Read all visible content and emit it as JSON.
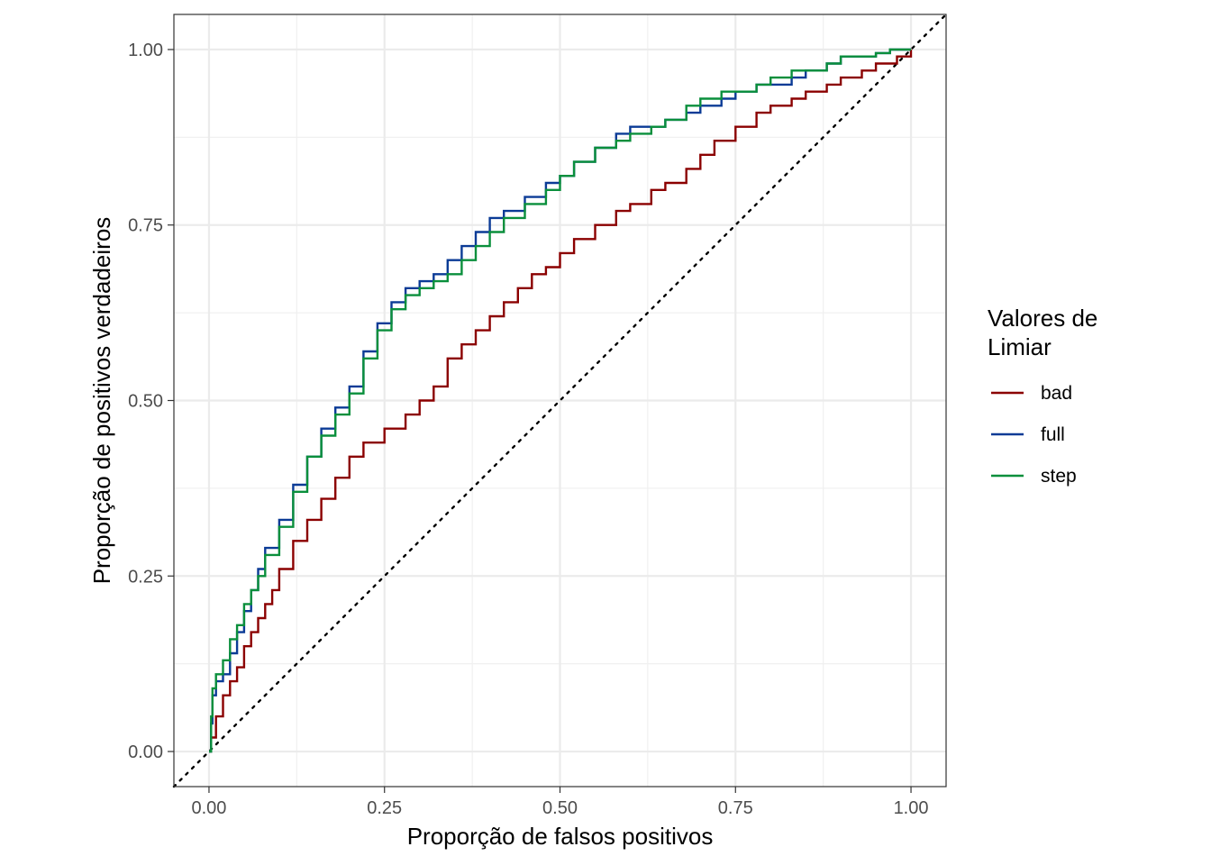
{
  "chart_data": {
    "type": "line",
    "xlabel": "Proporção de falsos positivos",
    "ylabel": "Proporção de positivos verdadeiros",
    "xlim": [
      -0.05,
      1.05
    ],
    "ylim": [
      -0.05,
      1.05
    ],
    "x_ticks": [
      "0.00",
      "0.25",
      "0.50",
      "0.75",
      "1.00"
    ],
    "y_ticks": [
      "0.00",
      "0.25",
      "0.50",
      "0.75",
      "1.00"
    ],
    "grid": true,
    "legend": {
      "title_lines": [
        "Valores de",
        "Limiar"
      ],
      "position": "right"
    },
    "reference_line": {
      "style": "dotted",
      "color": "#000000",
      "points": [
        [
          -0.05,
          -0.05
        ],
        [
          1.05,
          1.05
        ]
      ]
    },
    "series": [
      {
        "name": "bad",
        "color": "#8b0000",
        "points": [
          [
            0,
            0
          ],
          [
            0.003,
            0.02
          ],
          [
            0.01,
            0.05
          ],
          [
            0.02,
            0.08
          ],
          [
            0.03,
            0.1
          ],
          [
            0.04,
            0.12
          ],
          [
            0.05,
            0.15
          ],
          [
            0.06,
            0.17
          ],
          [
            0.07,
            0.19
          ],
          [
            0.08,
            0.21
          ],
          [
            0.09,
            0.23
          ],
          [
            0.1,
            0.26
          ],
          [
            0.12,
            0.3
          ],
          [
            0.14,
            0.33
          ],
          [
            0.16,
            0.36
          ],
          [
            0.18,
            0.39
          ],
          [
            0.2,
            0.42
          ],
          [
            0.22,
            0.44
          ],
          [
            0.25,
            0.46
          ],
          [
            0.28,
            0.48
          ],
          [
            0.3,
            0.5
          ],
          [
            0.32,
            0.52
          ],
          [
            0.34,
            0.56
          ],
          [
            0.36,
            0.58
          ],
          [
            0.38,
            0.6
          ],
          [
            0.4,
            0.62
          ],
          [
            0.42,
            0.64
          ],
          [
            0.44,
            0.66
          ],
          [
            0.46,
            0.68
          ],
          [
            0.48,
            0.69
          ],
          [
            0.5,
            0.71
          ],
          [
            0.52,
            0.73
          ],
          [
            0.55,
            0.75
          ],
          [
            0.58,
            0.77
          ],
          [
            0.6,
            0.78
          ],
          [
            0.63,
            0.8
          ],
          [
            0.65,
            0.81
          ],
          [
            0.68,
            0.83
          ],
          [
            0.7,
            0.85
          ],
          [
            0.72,
            0.87
          ],
          [
            0.75,
            0.89
          ],
          [
            0.78,
            0.91
          ],
          [
            0.8,
            0.92
          ],
          [
            0.83,
            0.93
          ],
          [
            0.85,
            0.94
          ],
          [
            0.88,
            0.95
          ],
          [
            0.9,
            0.96
          ],
          [
            0.93,
            0.97
          ],
          [
            0.95,
            0.98
          ],
          [
            0.98,
            0.99
          ],
          [
            1.0,
            1.0
          ]
        ]
      },
      {
        "name": "full",
        "color": "#0b3b96",
        "points": [
          [
            0,
            0
          ],
          [
            0.003,
            0.04
          ],
          [
            0.005,
            0.08
          ],
          [
            0.01,
            0.1
          ],
          [
            0.02,
            0.11
          ],
          [
            0.03,
            0.14
          ],
          [
            0.04,
            0.17
          ],
          [
            0.05,
            0.2
          ],
          [
            0.06,
            0.23
          ],
          [
            0.07,
            0.26
          ],
          [
            0.08,
            0.29
          ],
          [
            0.1,
            0.33
          ],
          [
            0.12,
            0.38
          ],
          [
            0.14,
            0.42
          ],
          [
            0.16,
            0.46
          ],
          [
            0.18,
            0.49
          ],
          [
            0.2,
            0.52
          ],
          [
            0.22,
            0.57
          ],
          [
            0.24,
            0.61
          ],
          [
            0.26,
            0.64
          ],
          [
            0.28,
            0.66
          ],
          [
            0.3,
            0.67
          ],
          [
            0.32,
            0.68
          ],
          [
            0.34,
            0.7
          ],
          [
            0.36,
            0.72
          ],
          [
            0.38,
            0.74
          ],
          [
            0.4,
            0.76
          ],
          [
            0.42,
            0.77
          ],
          [
            0.45,
            0.79
          ],
          [
            0.48,
            0.81
          ],
          [
            0.5,
            0.82
          ],
          [
            0.52,
            0.84
          ],
          [
            0.55,
            0.86
          ],
          [
            0.58,
            0.88
          ],
          [
            0.6,
            0.89
          ],
          [
            0.63,
            0.89
          ],
          [
            0.65,
            0.9
          ],
          [
            0.68,
            0.91
          ],
          [
            0.7,
            0.92
          ],
          [
            0.73,
            0.93
          ],
          [
            0.75,
            0.94
          ],
          [
            0.78,
            0.95
          ],
          [
            0.8,
            0.95
          ],
          [
            0.83,
            0.96
          ],
          [
            0.85,
            0.97
          ],
          [
            0.88,
            0.98
          ],
          [
            0.9,
            0.99
          ],
          [
            0.95,
            0.995
          ],
          [
            0.97,
            1.0
          ],
          [
            1.0,
            1.0
          ]
        ]
      },
      {
        "name": "step",
        "color": "#0a8f3c",
        "points": [
          [
            0,
            0
          ],
          [
            0.003,
            0.05
          ],
          [
            0.005,
            0.09
          ],
          [
            0.01,
            0.11
          ],
          [
            0.02,
            0.13
          ],
          [
            0.03,
            0.16
          ],
          [
            0.04,
            0.18
          ],
          [
            0.05,
            0.21
          ],
          [
            0.06,
            0.23
          ],
          [
            0.07,
            0.25
          ],
          [
            0.08,
            0.28
          ],
          [
            0.1,
            0.32
          ],
          [
            0.12,
            0.37
          ],
          [
            0.14,
            0.42
          ],
          [
            0.16,
            0.45
          ],
          [
            0.18,
            0.48
          ],
          [
            0.2,
            0.51
          ],
          [
            0.22,
            0.56
          ],
          [
            0.24,
            0.6
          ],
          [
            0.26,
            0.63
          ],
          [
            0.28,
            0.65
          ],
          [
            0.3,
            0.66
          ],
          [
            0.32,
            0.67
          ],
          [
            0.34,
            0.68
          ],
          [
            0.36,
            0.7
          ],
          [
            0.38,
            0.72
          ],
          [
            0.4,
            0.74
          ],
          [
            0.42,
            0.76
          ],
          [
            0.45,
            0.78
          ],
          [
            0.48,
            0.8
          ],
          [
            0.5,
            0.82
          ],
          [
            0.52,
            0.84
          ],
          [
            0.55,
            0.86
          ],
          [
            0.58,
            0.87
          ],
          [
            0.6,
            0.88
          ],
          [
            0.63,
            0.89
          ],
          [
            0.65,
            0.9
          ],
          [
            0.68,
            0.92
          ],
          [
            0.7,
            0.93
          ],
          [
            0.73,
            0.94
          ],
          [
            0.75,
            0.94
          ],
          [
            0.78,
            0.95
          ],
          [
            0.8,
            0.96
          ],
          [
            0.83,
            0.97
          ],
          [
            0.85,
            0.97
          ],
          [
            0.88,
            0.98
          ],
          [
            0.9,
            0.99
          ],
          [
            0.95,
            0.995
          ],
          [
            0.97,
            1.0
          ],
          [
            1.0,
            1.0
          ]
        ]
      }
    ]
  }
}
